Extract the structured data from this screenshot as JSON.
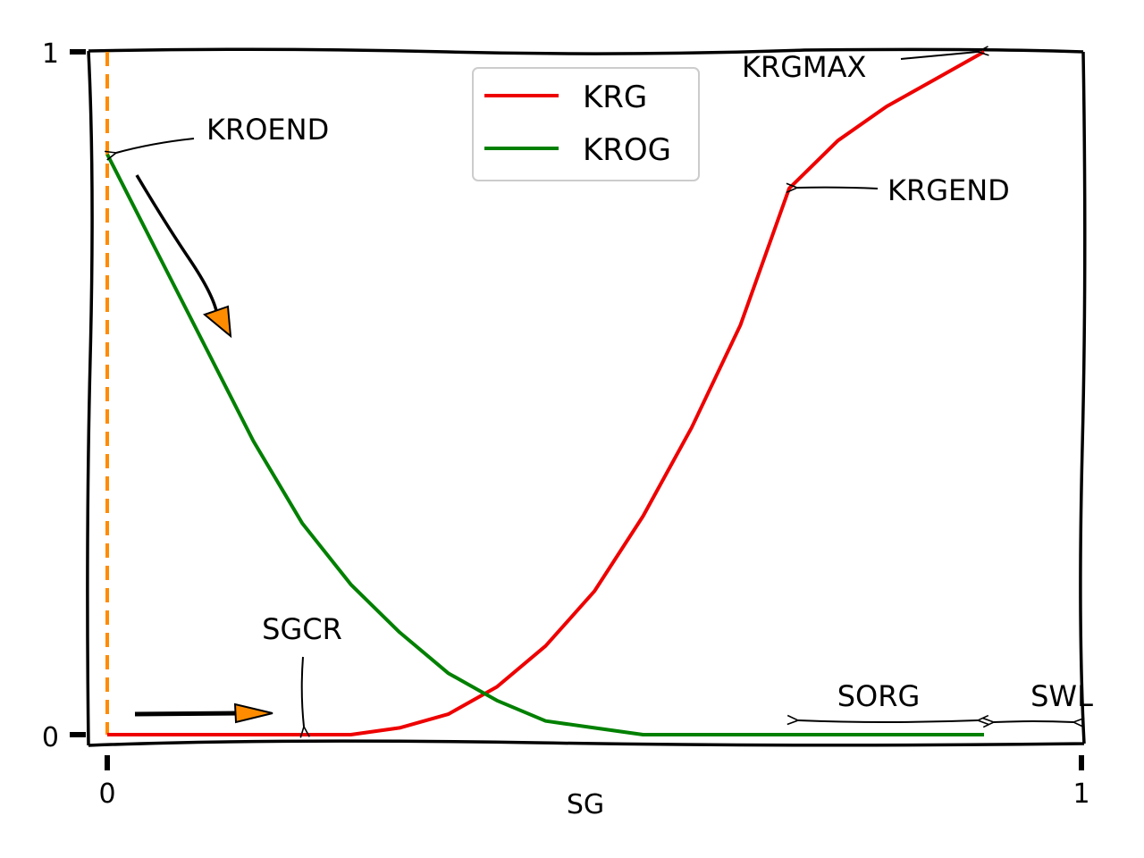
{
  "chart_data": {
    "type": "line",
    "xlabel": "SG",
    "ylabel": "",
    "xlim": [
      0,
      1
    ],
    "ylim": [
      0,
      1
    ],
    "xticks": [
      "0",
      "1"
    ],
    "yticks": [
      "0",
      "1"
    ],
    "grid": false,
    "legend_position": "top-center",
    "series": [
      {
        "name": "KRG",
        "color": "#ee0000",
        "x": [
          0.0,
          0.05,
          0.1,
          0.15,
          0.2,
          0.25,
          0.3,
          0.35,
          0.4,
          0.45,
          0.5,
          0.55,
          0.6,
          0.65,
          0.7,
          0.75,
          0.8,
          0.85,
          0.9
        ],
        "y": [
          0.0,
          0.0,
          0.0,
          0.0,
          0.0,
          0.0,
          0.01,
          0.03,
          0.07,
          0.13,
          0.21,
          0.32,
          0.45,
          0.6,
          0.8,
          0.87,
          0.92,
          0.96,
          1.0
        ]
      },
      {
        "name": "KROG",
        "color": "#008000",
        "x": [
          0.0,
          0.05,
          0.1,
          0.15,
          0.2,
          0.25,
          0.3,
          0.35,
          0.4,
          0.45,
          0.5,
          0.55,
          0.6,
          0.65,
          0.7,
          0.75,
          0.8,
          0.85,
          0.9
        ],
        "y": [
          0.85,
          0.71,
          0.57,
          0.43,
          0.31,
          0.22,
          0.15,
          0.09,
          0.05,
          0.02,
          0.01,
          0.0,
          0.0,
          0.0,
          0.0,
          0.0,
          0.0,
          0.0,
          0.0
        ]
      }
    ],
    "vline": {
      "x": 0.0,
      "color": "#ff8c00",
      "style": "dashed"
    },
    "annotations": [
      {
        "text": "KROEND",
        "points_to": [
          0.0,
          0.85
        ]
      },
      {
        "text": "KRGMAX",
        "points_to": [
          0.9,
          1.0
        ]
      },
      {
        "text": "KRGEND",
        "points_to": [
          0.7,
          0.8
        ]
      },
      {
        "text": "SGCR",
        "points_to": [
          0.2,
          0.0
        ]
      },
      {
        "text": "SORG",
        "span": [
          0.7,
          0.9
        ]
      },
      {
        "text": "SWL",
        "span": [
          0.9,
          1.0
        ]
      }
    ],
    "accent_color": "#ff8c00"
  }
}
